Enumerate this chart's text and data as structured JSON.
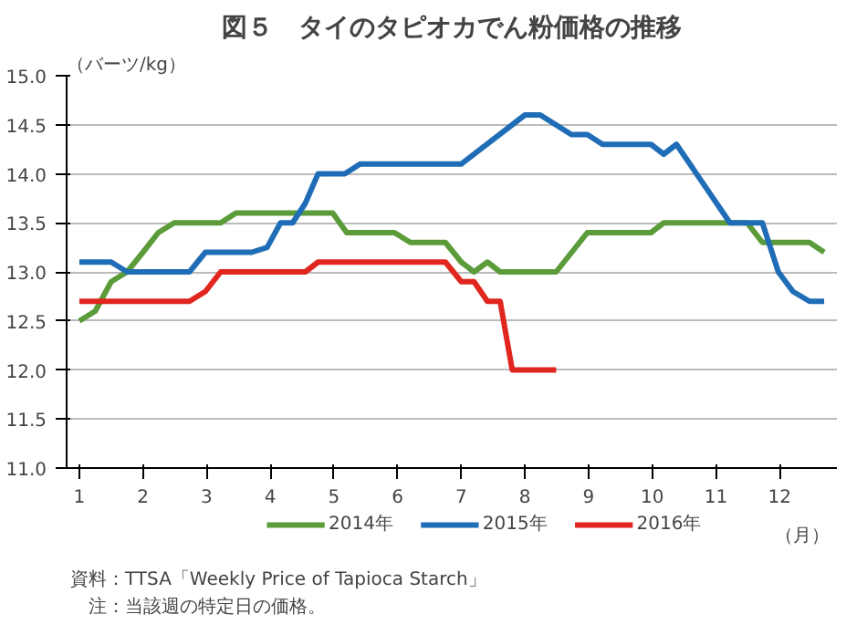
{
  "chart_data": {
    "type": "line",
    "title": "図５　タイのタピオカでん粉価格の推移",
    "ylabel": "（バーツ/kg）",
    "xlabel": "（月）",
    "xlim": [
      0.8,
      12.9
    ],
    "xticks": [
      1,
      2,
      3,
      4,
      5,
      6,
      7,
      8,
      9,
      10,
      11,
      12
    ],
    "ylim": [
      11.0,
      15.0
    ],
    "yticks": [
      {
        "value": 11,
        "label": "11.0"
      },
      {
        "value": 11.5,
        "label": "11.5"
      },
      {
        "value": 12,
        "label": "12.0"
      },
      {
        "value": 12.5,
        "label": "12.5"
      },
      {
        "value": 13,
        "label": "13.0"
      },
      {
        "value": 13.5,
        "label": "13.5"
      },
      {
        "value": 14,
        "label": "14.0"
      },
      {
        "value": 14.5,
        "label": "14.5"
      },
      {
        "value": 15,
        "label": "15.0"
      }
    ],
    "grid": "y",
    "legend": "bottom",
    "marker": "none",
    "line_style": "solid",
    "series": [
      {
        "name": "2014年",
        "color": "#5b9b3a",
        "x": [
          1,
          1.25,
          1.5,
          1.75,
          2,
          2.24,
          2.49,
          3.22,
          3.46,
          4.98,
          5.2,
          5.95,
          6.2,
          6.75,
          7,
          7.2,
          7.41,
          7.61,
          8.49,
          8.98,
          9.98,
          10.18,
          11.49,
          11.73,
          12.47,
          12.7
        ],
        "values": [
          12.5,
          12.6,
          12.9,
          13.0,
          13.2,
          13.4,
          13.5,
          13.5,
          13.6,
          13.6,
          13.4,
          13.4,
          13.3,
          13.3,
          13.1,
          13.0,
          13.1,
          13.0,
          13.0,
          13.4,
          13.4,
          13.5,
          13.5,
          13.3,
          13.3,
          13.2
        ]
      },
      {
        "name": "2015年",
        "color": "#1f6db6",
        "x": [
          1,
          1.5,
          1.75,
          2.73,
          2.98,
          3.71,
          3.95,
          4.16,
          4.35,
          4.55,
          4.75,
          5.17,
          5.41,
          7,
          8,
          8.24,
          8.73,
          8.98,
          9.22,
          9.98,
          10.18,
          10.38,
          11.22,
          11.73,
          11.98,
          12.21,
          12.47,
          12.7
        ],
        "values": [
          13.1,
          13.1,
          13.0,
          13.0,
          13.2,
          13.2,
          13.25,
          13.5,
          13.5,
          13.7,
          14.0,
          14.0,
          14.1,
          14.1,
          14.6,
          14.6,
          14.4,
          14.4,
          14.3,
          14.3,
          14.2,
          14.3,
          13.5,
          13.5,
          13.0,
          12.8,
          12.7,
          12.7
        ]
      },
      {
        "name": "2016年",
        "color": "#e0261f",
        "x": [
          1,
          2.73,
          2.98,
          3.22,
          4.55,
          4.75,
          6.75,
          7,
          7.2,
          7.41,
          7.61,
          7.8,
          8.49
        ],
        "values": [
          12.7,
          12.7,
          12.8,
          13.0,
          13.0,
          13.1,
          13.1,
          12.9,
          12.9,
          12.7,
          12.7,
          12.0,
          12.0
        ]
      }
    ],
    "annotations": [
      "資料：TTSA「Weekly Price of Tapioca Starch」",
      "注：当該週の特定日の価格。"
    ]
  }
}
